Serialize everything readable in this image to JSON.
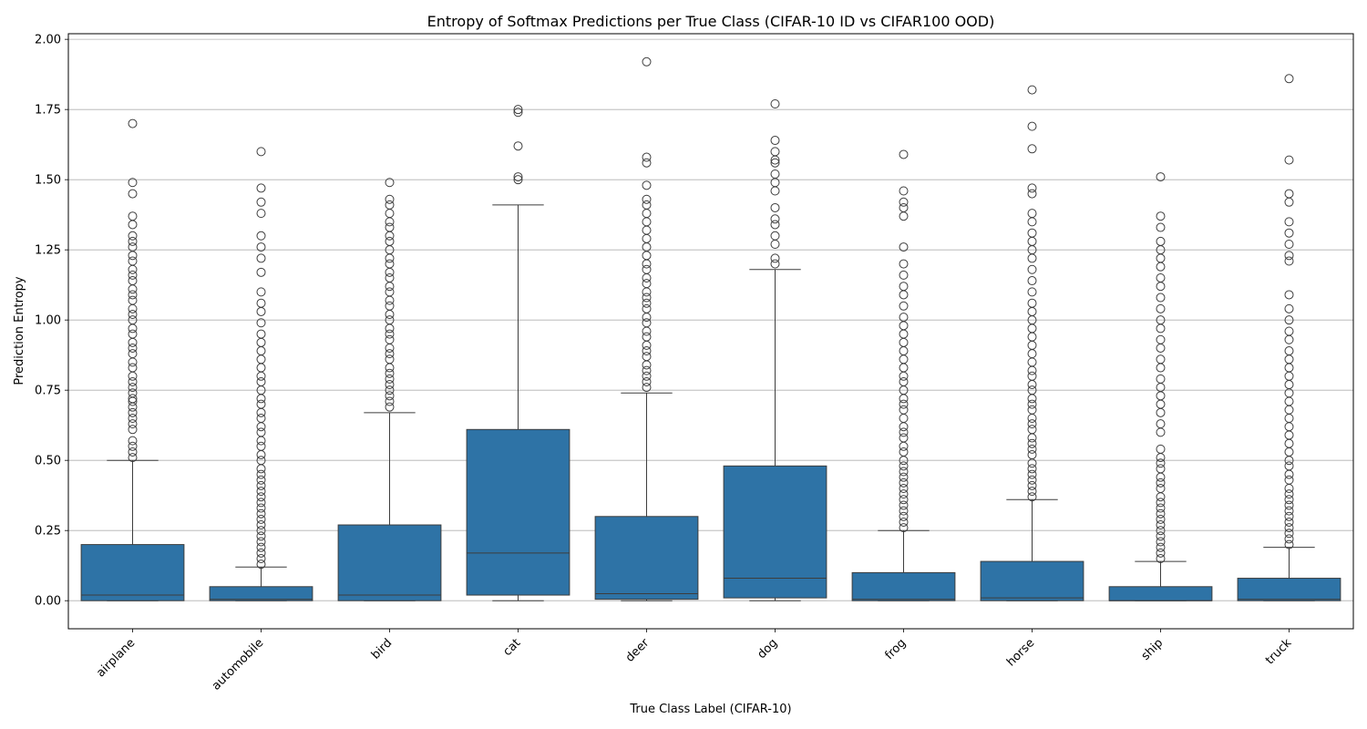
{
  "chart_data": {
    "type": "box",
    "title": "Entropy of Softmax Predictions per True Class (CIFAR-10 ID vs CIFAR100 OOD)",
    "xlabel": "True Class Label (CIFAR-10)",
    "ylabel": "Prediction Entropy",
    "ylim": [
      -0.1,
      2.02
    ],
    "yticks": [
      "0.00",
      "0.25",
      "0.50",
      "0.75",
      "1.00",
      "1.25",
      "1.50",
      "1.75",
      "2.00"
    ],
    "grid": "horizontal",
    "color": "#2e73a6",
    "categories": [
      "airplane",
      "automobile",
      "bird",
      "cat",
      "deer",
      "dog",
      "frog",
      "horse",
      "ship",
      "truck"
    ],
    "boxes": [
      {
        "whisker_low": 0.0,
        "q1": 0.0,
        "median": 0.02,
        "q3": 0.2,
        "whisker_high": 0.5,
        "outliers": [
          0.51,
          0.53,
          0.55,
          0.57,
          0.61,
          0.63,
          0.65,
          0.67,
          0.69,
          0.71,
          0.72,
          0.74,
          0.76,
          0.78,
          0.8,
          0.83,
          0.85,
          0.88,
          0.9,
          0.92,
          0.95,
          0.97,
          1.0,
          1.02,
          1.04,
          1.07,
          1.09,
          1.11,
          1.14,
          1.16,
          1.18,
          1.21,
          1.23,
          1.26,
          1.28,
          1.3,
          1.34,
          1.37,
          1.45,
          1.49,
          1.7
        ]
      },
      {
        "whisker_low": 0.0,
        "q1": 0.0,
        "median": 0.005,
        "q3": 0.05,
        "whisker_high": 0.12,
        "outliers": [
          0.13,
          0.15,
          0.17,
          0.19,
          0.21,
          0.23,
          0.25,
          0.27,
          0.29,
          0.31,
          0.33,
          0.35,
          0.37,
          0.39,
          0.41,
          0.43,
          0.45,
          0.47,
          0.5,
          0.52,
          0.55,
          0.57,
          0.6,
          0.62,
          0.65,
          0.67,
          0.7,
          0.72,
          0.75,
          0.78,
          0.8,
          0.83,
          0.86,
          0.89,
          0.92,
          0.95,
          0.99,
          1.03,
          1.06,
          1.1,
          1.17,
          1.22,
          1.26,
          1.3,
          1.38,
          1.42,
          1.47,
          1.6
        ]
      },
      {
        "whisker_low": 0.0,
        "q1": 0.0,
        "median": 0.02,
        "q3": 0.27,
        "whisker_high": 0.67,
        "outliers": [
          0.69,
          0.71,
          0.73,
          0.75,
          0.77,
          0.79,
          0.81,
          0.83,
          0.86,
          0.88,
          0.9,
          0.93,
          0.95,
          0.97,
          1.0,
          1.02,
          1.05,
          1.07,
          1.1,
          1.12,
          1.15,
          1.17,
          1.2,
          1.22,
          1.25,
          1.28,
          1.3,
          1.33,
          1.35,
          1.38,
          1.41,
          1.43,
          1.49
        ]
      },
      {
        "whisker_low": 0.0,
        "q1": 0.02,
        "median": 0.17,
        "q3": 0.61,
        "whisker_high": 1.41,
        "outliers": [
          1.5,
          1.51,
          1.62,
          1.74,
          1.75
        ]
      },
      {
        "whisker_low": 0.0,
        "q1": 0.005,
        "median": 0.025,
        "q3": 0.3,
        "whisker_high": 0.74,
        "outliers": [
          0.76,
          0.78,
          0.8,
          0.82,
          0.84,
          0.87,
          0.89,
          0.91,
          0.94,
          0.96,
          0.99,
          1.01,
          1.04,
          1.06,
          1.08,
          1.1,
          1.13,
          1.15,
          1.18,
          1.2,
          1.23,
          1.26,
          1.29,
          1.32,
          1.35,
          1.38,
          1.41,
          1.43,
          1.48,
          1.56,
          1.58,
          1.92
        ]
      },
      {
        "whisker_low": 0.0,
        "q1": 0.01,
        "median": 0.08,
        "q3": 0.48,
        "whisker_high": 1.18,
        "outliers": [
          1.2,
          1.22,
          1.27,
          1.3,
          1.34,
          1.36,
          1.4,
          1.46,
          1.49,
          1.52,
          1.56,
          1.57,
          1.6,
          1.64,
          1.77
        ]
      },
      {
        "whisker_low": 0.0,
        "q1": 0.0,
        "median": 0.005,
        "q3": 0.1,
        "whisker_high": 0.25,
        "outliers": [
          0.26,
          0.28,
          0.3,
          0.32,
          0.34,
          0.36,
          0.38,
          0.4,
          0.42,
          0.44,
          0.46,
          0.48,
          0.5,
          0.53,
          0.55,
          0.58,
          0.6,
          0.62,
          0.65,
          0.68,
          0.7,
          0.72,
          0.75,
          0.78,
          0.8,
          0.83,
          0.86,
          0.89,
          0.92,
          0.95,
          0.98,
          1.01,
          1.05,
          1.09,
          1.12,
          1.16,
          1.2,
          1.26,
          1.37,
          1.4,
          1.42,
          1.46,
          1.59
        ]
      },
      {
        "whisker_low": 0.0,
        "q1": 0.0,
        "median": 0.01,
        "q3": 0.14,
        "whisker_high": 0.36,
        "outliers": [
          0.37,
          0.39,
          0.41,
          0.43,
          0.45,
          0.47,
          0.49,
          0.52,
          0.54,
          0.56,
          0.58,
          0.61,
          0.63,
          0.65,
          0.68,
          0.7,
          0.72,
          0.75,
          0.77,
          0.8,
          0.82,
          0.85,
          0.88,
          0.91,
          0.94,
          0.97,
          1.0,
          1.03,
          1.06,
          1.1,
          1.14,
          1.18,
          1.22,
          1.25,
          1.28,
          1.31,
          1.35,
          1.38,
          1.45,
          1.47,
          1.61,
          1.69,
          1.82
        ]
      },
      {
        "whisker_low": 0.0,
        "q1": 0.0,
        "median": 0.0,
        "q3": 0.05,
        "whisker_high": 0.14,
        "outliers": [
          0.15,
          0.17,
          0.19,
          0.21,
          0.23,
          0.25,
          0.27,
          0.29,
          0.31,
          0.33,
          0.35,
          0.37,
          0.4,
          0.42,
          0.44,
          0.47,
          0.49,
          0.51,
          0.54,
          0.6,
          0.63,
          0.67,
          0.7,
          0.73,
          0.76,
          0.79,
          0.83,
          0.86,
          0.9,
          0.93,
          0.97,
          1.0,
          1.04,
          1.08,
          1.12,
          1.15,
          1.19,
          1.22,
          1.25,
          1.28,
          1.33,
          1.37,
          1.51
        ]
      },
      {
        "whisker_low": 0.0,
        "q1": 0.0,
        "median": 0.005,
        "q3": 0.08,
        "whisker_high": 0.19,
        "outliers": [
          0.2,
          0.22,
          0.24,
          0.26,
          0.28,
          0.3,
          0.32,
          0.34,
          0.36,
          0.38,
          0.4,
          0.43,
          0.45,
          0.48,
          0.5,
          0.53,
          0.56,
          0.59,
          0.62,
          0.65,
          0.68,
          0.71,
          0.74,
          0.77,
          0.8,
          0.83,
          0.86,
          0.89,
          0.93,
          0.96,
          1.0,
          1.04,
          1.09,
          1.21,
          1.23,
          1.27,
          1.31,
          1.35,
          1.42,
          1.45,
          1.57,
          1.86
        ]
      }
    ]
  }
}
